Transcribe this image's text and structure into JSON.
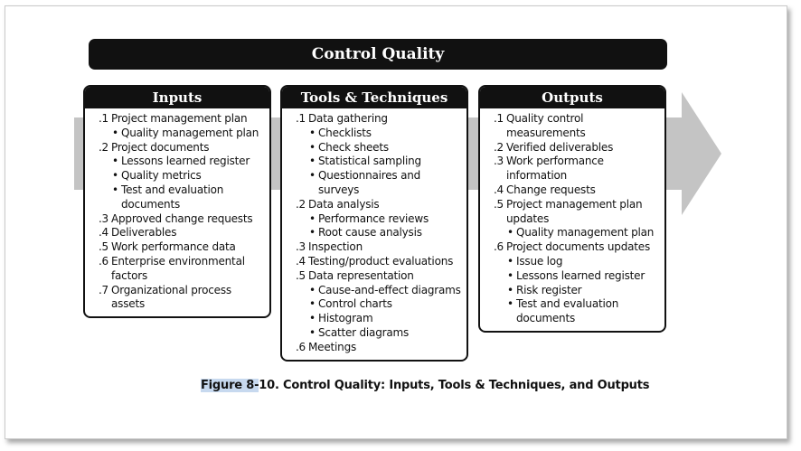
{
  "title": "Control Quality",
  "inputs": {
    "header": "Inputs",
    "items": [
      {
        "num": ".1",
        "label": "Project management plan",
        "subs": [
          "Quality management plan"
        ]
      },
      {
        "num": ".2",
        "label": "Project documents",
        "subs": [
          "Lessons learned register",
          "Quality metrics",
          "Test and evaluation documents"
        ]
      },
      {
        "num": ".3",
        "label": "Approved change requests",
        "subs": []
      },
      {
        "num": ".4",
        "label": "Deliverables",
        "subs": []
      },
      {
        "num": ".5",
        "label": "Work performance data",
        "subs": []
      },
      {
        "num": ".6",
        "label": "Enterprise environmental factors",
        "subs": []
      },
      {
        "num": ".7",
        "label": "Organizational process assets",
        "subs": []
      }
    ]
  },
  "tools": {
    "header": "Tools & Techniques",
    "items": [
      {
        "num": ".1",
        "label": "Data gathering",
        "subs": [
          "Checklists",
          "Check sheets",
          "Statistical sampling",
          "Questionnaires and surveys"
        ]
      },
      {
        "num": ".2",
        "label": "Data analysis",
        "subs": [
          "Performance reviews",
          "Root cause analysis"
        ]
      },
      {
        "num": ".3",
        "label": "Inspection",
        "subs": []
      },
      {
        "num": ".4",
        "label": "Testing/product evaluations",
        "subs": []
      },
      {
        "num": ".5",
        "label": "Data representation",
        "subs": [
          "Cause-and-effect diagrams",
          "Control charts",
          "Histogram",
          "Scatter diagrams"
        ]
      },
      {
        "num": ".6",
        "label": "Meetings",
        "subs": []
      }
    ]
  },
  "outputs": {
    "header": "Outputs",
    "items": [
      {
        "num": ".1",
        "label": "Quality control measurements",
        "subs": []
      },
      {
        "num": ".2",
        "label": "Verified deliverables",
        "subs": []
      },
      {
        "num": ".3",
        "label": "Work performance information",
        "subs": []
      },
      {
        "num": ".4",
        "label": "Change requests",
        "subs": []
      },
      {
        "num": ".5",
        "label": "Project management plan updates",
        "subs": [
          "Quality management plan"
        ]
      },
      {
        "num": ".6",
        "label": "Project documents updates",
        "subs": [
          "Issue log",
          "Lessons learned register",
          "Risk register",
          "Test and evaluation documents"
        ]
      }
    ]
  },
  "caption": {
    "highlight": "Figure 8-",
    "rest": "10. Control Quality: Inputs, Tools & Techniques, and Outputs"
  },
  "colors": {
    "arrow": "#c4c4c4",
    "header_bg": "#111111",
    "highlight": "#c7d9ef"
  }
}
